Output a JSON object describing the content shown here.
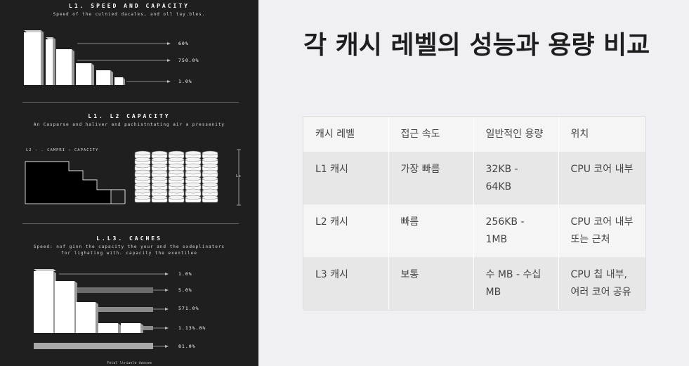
{
  "infographic": {
    "section1": {
      "title": "L1. SPEED AND CAPACITY",
      "subtitle": "Speed of the culnied dacales, and oll tay.bles.",
      "labels": [
        "60%",
        "750.0%",
        "1.0%"
      ]
    },
    "section2": {
      "title": "L1. L2 CAPACITY",
      "subtitle": "An Casparse and haliver and pachistntating air a pressenity",
      "chart_label": "L2 - . CAMPRI : CAPACITY",
      "side_label": "Lc"
    },
    "section3": {
      "title": "L.L3. CACHES",
      "subtitle_line1": "Speed: nof ginn the capacity the your and the oxdeplinators",
      "subtitle_line2": "for lighating with. capacity the exentilee",
      "labels": [
        "1.0%",
        "5.0%",
        "571.0%",
        "1.13%.0%",
        "81.0%"
      ]
    },
    "footer": "Fetal ltrianle dascem"
  },
  "main": {
    "title": "각 캐시 레벨의 성능과 용량 비교",
    "table": {
      "headers": [
        "캐시 레벨",
        "접근 속도",
        "일반적인 용량",
        "위치"
      ],
      "rows": [
        [
          "L1 캐시",
          "가장 빠름",
          "32KB - 64KB",
          "CPU 코어 내부"
        ],
        [
          "L2 캐시",
          "빠름",
          "256KB - 1MB",
          "CPU 코어 내부 또는 근처"
        ],
        [
          "L3 캐시",
          "보통",
          "수 MB - 수십 MB",
          "CPU 칩 내부, 여러 코어 공유"
        ]
      ]
    }
  }
}
